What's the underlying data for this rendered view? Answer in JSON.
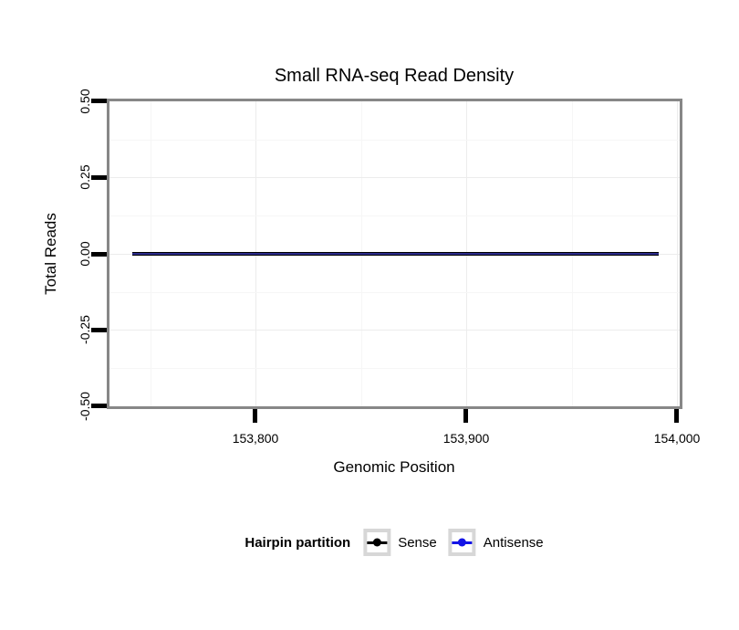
{
  "chart_data": {
    "type": "line",
    "title": "Small RNA-seq Read Density",
    "xlabel": "Genomic Position",
    "ylabel": "Total Reads",
    "xlim_approx": [
      153731,
      154001
    ],
    "ylim": [
      -0.5,
      0.5
    ],
    "x_ticks": [
      {
        "value": 153800,
        "label": "153,800"
      },
      {
        "value": 153900,
        "label": "153,900"
      },
      {
        "value": 154000,
        "label": "154,000"
      }
    ],
    "y_ticks": [
      {
        "value": 0.5,
        "label": "0.50"
      },
      {
        "value": 0.25,
        "label": "0.25"
      },
      {
        "value": 0.0,
        "label": "0.00"
      },
      {
        "value": -0.25,
        "label": "-0.25"
      },
      {
        "value": -0.5,
        "label": "-0.50"
      }
    ],
    "grid": {
      "x_minor": [
        153750,
        153850,
        153950
      ],
      "y_minor": [
        0.375,
        0.125,
        -0.125,
        -0.375
      ],
      "major_color": "#ececec",
      "minor_color": "#f6f6f6"
    },
    "panel": {
      "border_color": "#878787",
      "background": "#ffffff",
      "tick_color": "#000000"
    },
    "series": [
      {
        "name": "Sense",
        "color": "#000000",
        "points": [
          {
            "x": 153742,
            "y": 0
          },
          {
            "x": 153991,
            "y": 0
          }
        ]
      },
      {
        "name": "Antisense",
        "color": "#1414e6",
        "points": [
          {
            "x": 153742,
            "y": 0
          },
          {
            "x": 153991,
            "y": 0
          }
        ]
      }
    ],
    "overlap_note": "Both series are flat at y=0 and overlap, rendering as a dark navy line",
    "legend": {
      "title": "Hairpin partition",
      "position": "bottom",
      "entries": [
        {
          "label": "Sense",
          "color": "#000000"
        },
        {
          "label": "Antisense",
          "color": "#1414e6"
        }
      ]
    }
  }
}
